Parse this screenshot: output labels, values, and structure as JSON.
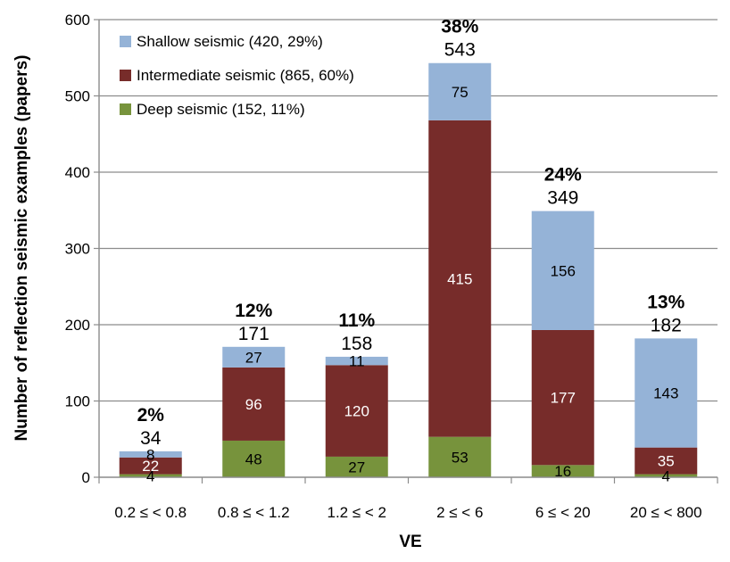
{
  "chart_data": {
    "type": "bar",
    "stacked": true,
    "xlabel": "VE",
    "ylabel": "Number of reflection seismic examples (papers)",
    "ylim": [
      0,
      600
    ],
    "yticks": [
      0,
      100,
      200,
      300,
      400,
      500,
      600
    ],
    "grid": true,
    "legend_position": "top-left",
    "categories": [
      "0.2 ≤ < 0.8",
      "0.8 ≤ < 1.2",
      "1.2 ≤ < 2",
      "2 ≤ < 6",
      "6 ≤ < 20",
      "20 ≤ < 800"
    ],
    "totals": [
      34,
      171,
      158,
      543,
      349,
      182
    ],
    "percents": [
      "2%",
      "12%",
      "11%",
      "38%",
      "24%",
      "13%"
    ],
    "series": [
      {
        "name": "Deep seismic",
        "legend": "Deep seismic (152, 11%)",
        "color": "#77933c",
        "label_color": "#000000",
        "values": [
          4,
          48,
          27,
          53,
          16,
          4
        ]
      },
      {
        "name": "Intermediate seismic",
        "legend": "Intermediate seismic (865, 60%)",
        "color": "#772c2a",
        "label_color": "#ffffff",
        "values": [
          22,
          96,
          120,
          415,
          177,
          35
        ]
      },
      {
        "name": "Shallow seismic",
        "legend": "Shallow seismic (420, 29%)",
        "color": "#95b3d7",
        "label_color": "#000000",
        "values": [
          8,
          27,
          11,
          75,
          156,
          143
        ]
      }
    ]
  }
}
